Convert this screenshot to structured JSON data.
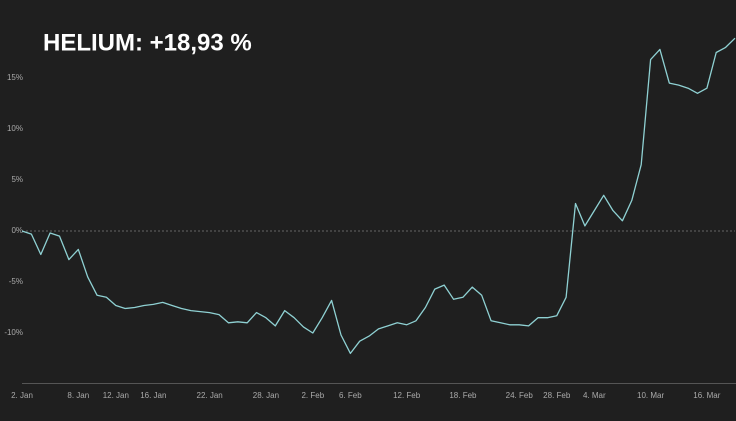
{
  "chart_data": {
    "type": "line",
    "title": "HELIUM: +18,93 %",
    "categories": [
      "2. Jan",
      null,
      null,
      null,
      null,
      null,
      "8. Jan",
      null,
      null,
      null,
      "12. Jan",
      null,
      null,
      null,
      "16. Jan",
      null,
      null,
      null,
      null,
      null,
      "22. Jan",
      null,
      null,
      null,
      null,
      null,
      "28. Jan",
      null,
      null,
      null,
      null,
      "2. Feb",
      null,
      null,
      null,
      "6. Feb",
      null,
      null,
      null,
      null,
      null,
      "12. Feb",
      null,
      null,
      null,
      null,
      null,
      "18. Feb",
      null,
      null,
      null,
      null,
      null,
      "24. Feb",
      null,
      null,
      null,
      "28. Feb",
      null,
      null,
      null,
      "4. Mar",
      null,
      null,
      null,
      null,
      null,
      "10. Mar",
      null,
      null,
      null,
      null,
      null,
      "16. Mar",
      null,
      null,
      null
    ],
    "series": [
      {
        "name": "HELIUM",
        "color": "#8fd1d3",
        "values": [
          0,
          -0.3,
          -2.3,
          -0.2,
          -0.5,
          -2.8,
          -1.8,
          -4.5,
          -6.3,
          -6.5,
          -7.3,
          -7.6,
          -7.5,
          -7.3,
          -7.2,
          -7.0,
          -7.3,
          -7.6,
          -7.8,
          -7.9,
          -8.0,
          -8.2,
          -9.0,
          -8.9,
          -9.0,
          -8.0,
          -8.5,
          -9.3,
          -7.8,
          -8.5,
          -9.4,
          -10.0,
          -8.5,
          -6.8,
          -10.2,
          -12.0,
          -10.8,
          -10.3,
          -9.6,
          -9.3,
          -9.0,
          -9.2,
          -8.8,
          -7.5,
          -5.7,
          -5.3,
          -6.7,
          -6.5,
          -5.5,
          -6.3,
          -8.8,
          -9.0,
          -9.2,
          -9.2,
          -9.3,
          -8.5,
          -8.5,
          -8.3,
          -6.5,
          2.7,
          0.5,
          2.0,
          3.5,
          2.0,
          1.0,
          3.0,
          6.5,
          16.8,
          17.8,
          14.5,
          14.3,
          14.0,
          13.5,
          14.0,
          17.5,
          18.0,
          18.9
        ]
      }
    ],
    "ylim": [
      -15,
      20
    ],
    "yticks": [
      {
        "value": -10,
        "label": "-10%"
      },
      {
        "value": -5,
        "label": "-5%"
      },
      {
        "value": 0,
        "label": "0%"
      },
      {
        "value": 5,
        "label": "5%"
      },
      {
        "value": 10,
        "label": "10%"
      },
      {
        "value": 15,
        "label": "15%"
      }
    ],
    "zero_line": true
  }
}
